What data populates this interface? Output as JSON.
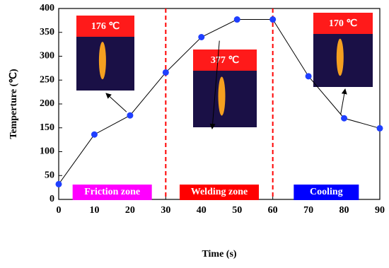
{
  "chart_data": {
    "type": "line",
    "x": [
      0,
      10,
      20,
      30,
      40,
      50,
      60,
      70,
      80,
      90
    ],
    "series": [
      {
        "color": "#1f3fff",
        "values": [
          32,
          136,
          176,
          266,
          340,
          377,
          377,
          258,
          170,
          149
        ]
      }
    ],
    "xlim": [
      0,
      90
    ],
    "xticks": [
      0,
      10,
      20,
      30,
      40,
      50,
      60,
      70,
      80,
      90
    ],
    "ylim": [
      0,
      400
    ],
    "yticks": [
      0,
      50,
      100,
      150,
      200,
      250,
      300,
      350,
      400
    ],
    "xlabel": "Time (s)",
    "ylabel": "Temperture (℃)",
    "vlines": [
      30,
      60
    ],
    "zones": [
      {
        "label": "Friction zone",
        "color": "#ff00ff"
      },
      {
        "label": "Welding zone",
        "color": "#ff0000"
      },
      {
        "label": "Cooling",
        "color": "#0000ff"
      }
    ],
    "annotations": [
      "176 ℃",
      "377 ℃",
      "170 ℃"
    ]
  }
}
